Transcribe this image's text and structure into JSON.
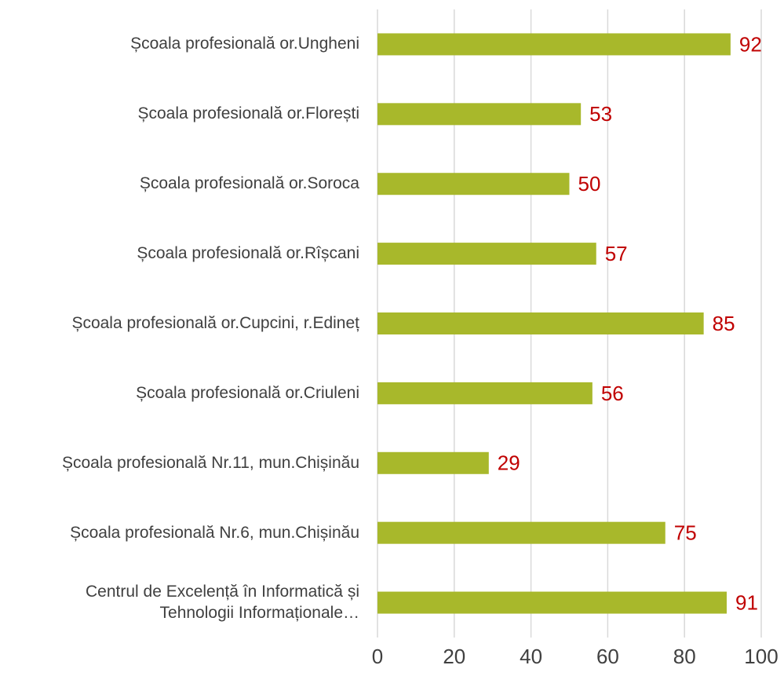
{
  "chart_data": {
    "type": "bar",
    "orientation": "horizontal",
    "categories": [
      "Școala profesională or.Ungheni",
      "Școala profesională or.Florești",
      "Școala profesională or.Soroca",
      "Școala profesională or.Rîșcani",
      "Școala profesională or.Cupcini, r.Edineț",
      "Școala profesională or.Criuleni",
      "Școala profesională Nr.11, mun.Chișinău",
      "Școala profesională Nr.6, mun.Chișinău",
      "Centrul de Excelență în Informatică și Tehnologii Informaționale…"
    ],
    "values": [
      92,
      53,
      50,
      57,
      85,
      56,
      29,
      75,
      91
    ],
    "color": "#a8b82b",
    "label_color": "#c00000",
    "xlim": [
      0,
      100
    ],
    "xticks": [
      0,
      20,
      40,
      60,
      80,
      100
    ],
    "grid": true
  }
}
